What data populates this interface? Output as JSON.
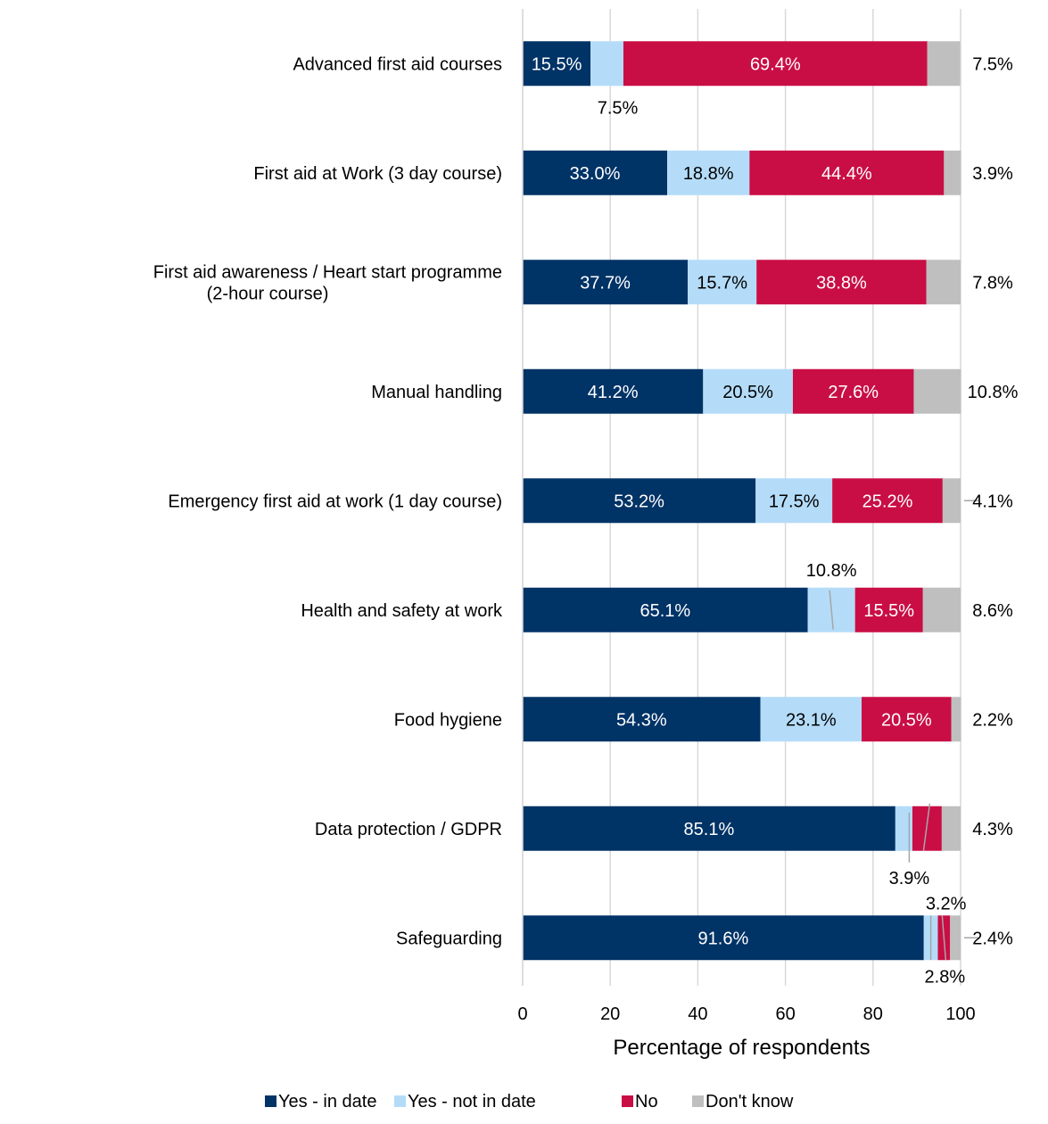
{
  "chart_data": {
    "type": "bar",
    "orientation": "horizontal",
    "stacked": true,
    "categories": [
      "Advanced first aid courses",
      "First aid at Work (3 day course)",
      "First aid awareness / Heart start programme (2-hour course)",
      "Manual handling",
      "Emergency first aid at work (1 day course)",
      "Health and safety at work",
      "Food hygiene",
      "Data protection / GDPR",
      "Safeguarding"
    ],
    "series": [
      {
        "name": "Yes - in date",
        "color": "#003366",
        "values": [
          15.5,
          33.0,
          37.7,
          41.2,
          53.2,
          65.1,
          54.3,
          85.1,
          91.6
        ]
      },
      {
        "name": "Yes - not in date",
        "color": "#b4dcf9",
        "values": [
          7.5,
          18.8,
          15.7,
          20.5,
          17.5,
          10.8,
          23.1,
          3.9,
          3.2
        ]
      },
      {
        "name": "No",
        "color": "#c90e45",
        "values": [
          69.4,
          44.4,
          38.8,
          27.6,
          25.2,
          15.5,
          20.5,
          6.7,
          2.8
        ]
      },
      {
        "name": "Don't know",
        "color": "#bfbfbf",
        "values": [
          7.5,
          3.9,
          7.8,
          10.8,
          4.1,
          8.6,
          2.2,
          4.3,
          2.4
        ]
      }
    ],
    "data_labels": [
      [
        "15.5%",
        "7.5%",
        "69.4%",
        "7.5%"
      ],
      [
        "33.0%",
        "18.8%",
        "44.4%",
        "3.9%"
      ],
      [
        "37.7%",
        "15.7%",
        "38.8%",
        "7.8%"
      ],
      [
        "41.2%",
        "20.5%",
        "27.6%",
        "10.8%"
      ],
      [
        "53.2%",
        "17.5%",
        "25.2%",
        "4.1%"
      ],
      [
        "65.1%",
        "10.8%",
        "15.5%",
        "8.6%"
      ],
      [
        "54.3%",
        "23.1%",
        "20.5%",
        "2.2%"
      ],
      [
        "85.1%",
        "3.9%",
        "",
        "4.3%"
      ],
      [
        "91.6%",
        "3.2%",
        "2.8%",
        "2.4%"
      ]
    ],
    "xlabel": "Percentage of respondents",
    "xlim": [
      0,
      100
    ],
    "xticks": [
      "0",
      "20",
      "40",
      "60",
      "80",
      "100"
    ],
    "grid": "vertical",
    "legend_position": "bottom"
  }
}
